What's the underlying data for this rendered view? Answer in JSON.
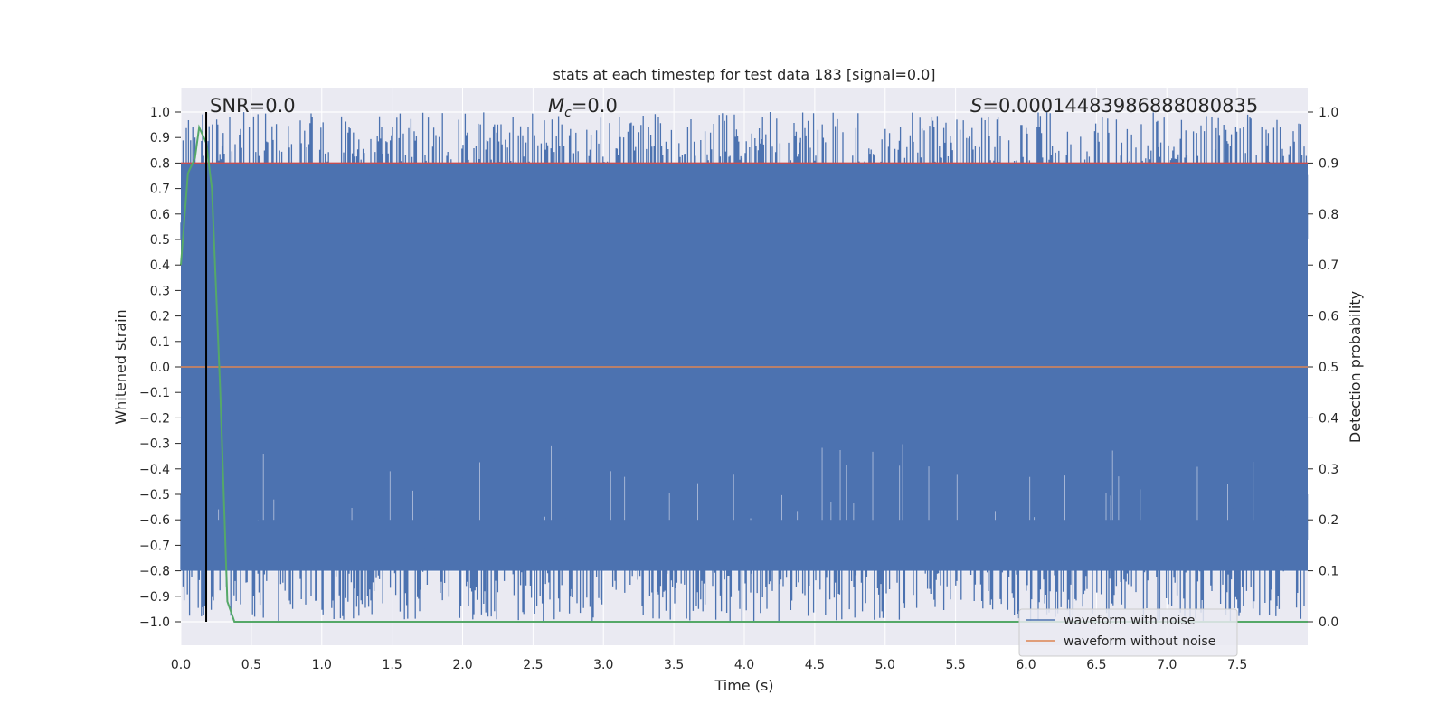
{
  "chart_data": {
    "type": "line",
    "title": "stats at each timestep for test data 183 [signal=0.0]",
    "xlabel": "Time (s)",
    "ylabel": "Whitened strain",
    "y2label": "Detection probability",
    "xlim": [
      0.0,
      8.0
    ],
    "ylim": [
      -1.0,
      1.0
    ],
    "y2lim": [
      0.0,
      1.0
    ],
    "x_ticks": [
      "0.0",
      "0.5",
      "1.0",
      "1.5",
      "2.0",
      "2.5",
      "3.0",
      "3.5",
      "4.0",
      "4.5",
      "5.0",
      "5.5",
      "6.0",
      "6.5",
      "7.0",
      "7.5"
    ],
    "y_ticks": [
      "1.0",
      "0.9",
      "0.8",
      "0.7",
      "0.6",
      "0.5",
      "0.4",
      "0.3",
      "0.2",
      "0.1",
      "0.0",
      "−0.1",
      "−0.2",
      "−0.3",
      "−0.4",
      "−0.5",
      "−0.6",
      "−0.7",
      "−0.8",
      "−0.9",
      "−1.0"
    ],
    "y2_ticks": [
      "1.0",
      "0.9",
      "0.8",
      "0.7",
      "0.6",
      "0.5",
      "0.4",
      "0.3",
      "0.2",
      "0.1",
      "0.0"
    ],
    "grid": true,
    "legend_position": "bottom-right",
    "annotations": {
      "snr": "SNR=0.0",
      "mc_symbol": "M",
      "mc_sub": "c",
      "mc_value": "=0.0",
      "s_symbol": "S",
      "s_value": "=0.00014483986888080835"
    },
    "marker_line_x": 0.18,
    "series": [
      {
        "name": "waveform with noise",
        "color": "#4c72b0",
        "description_values": "dense whitened noise clipped to the range [-1.0, 1.0] over 0.0–8.0 s",
        "amplitude_range": [
          -1.0,
          1.0
        ]
      },
      {
        "name": "waveform without noise",
        "color": "#dd8452",
        "values": [
          [
            0.0,
            0.0
          ],
          [
            8.0,
            0.0
          ]
        ]
      },
      {
        "color": "#55a868",
        "axis": "right",
        "values": [
          [
            0.0,
            0.7
          ],
          [
            0.05,
            0.88
          ],
          [
            0.1,
            0.91
          ],
          [
            0.13,
            0.97
          ],
          [
            0.18,
            0.94
          ],
          [
            0.22,
            0.85
          ],
          [
            0.28,
            0.45
          ],
          [
            0.33,
            0.04
          ],
          [
            0.38,
            0.0
          ],
          [
            8.0,
            0.0
          ]
        ]
      }
    ],
    "threshold_line": {
      "axis": "right",
      "value": 0.9,
      "color": "#c44e52"
    },
    "colors": {
      "plot_bg": "#eaeaf2",
      "grid": "#ffffff",
      "vertical_marker": "#000000"
    }
  }
}
